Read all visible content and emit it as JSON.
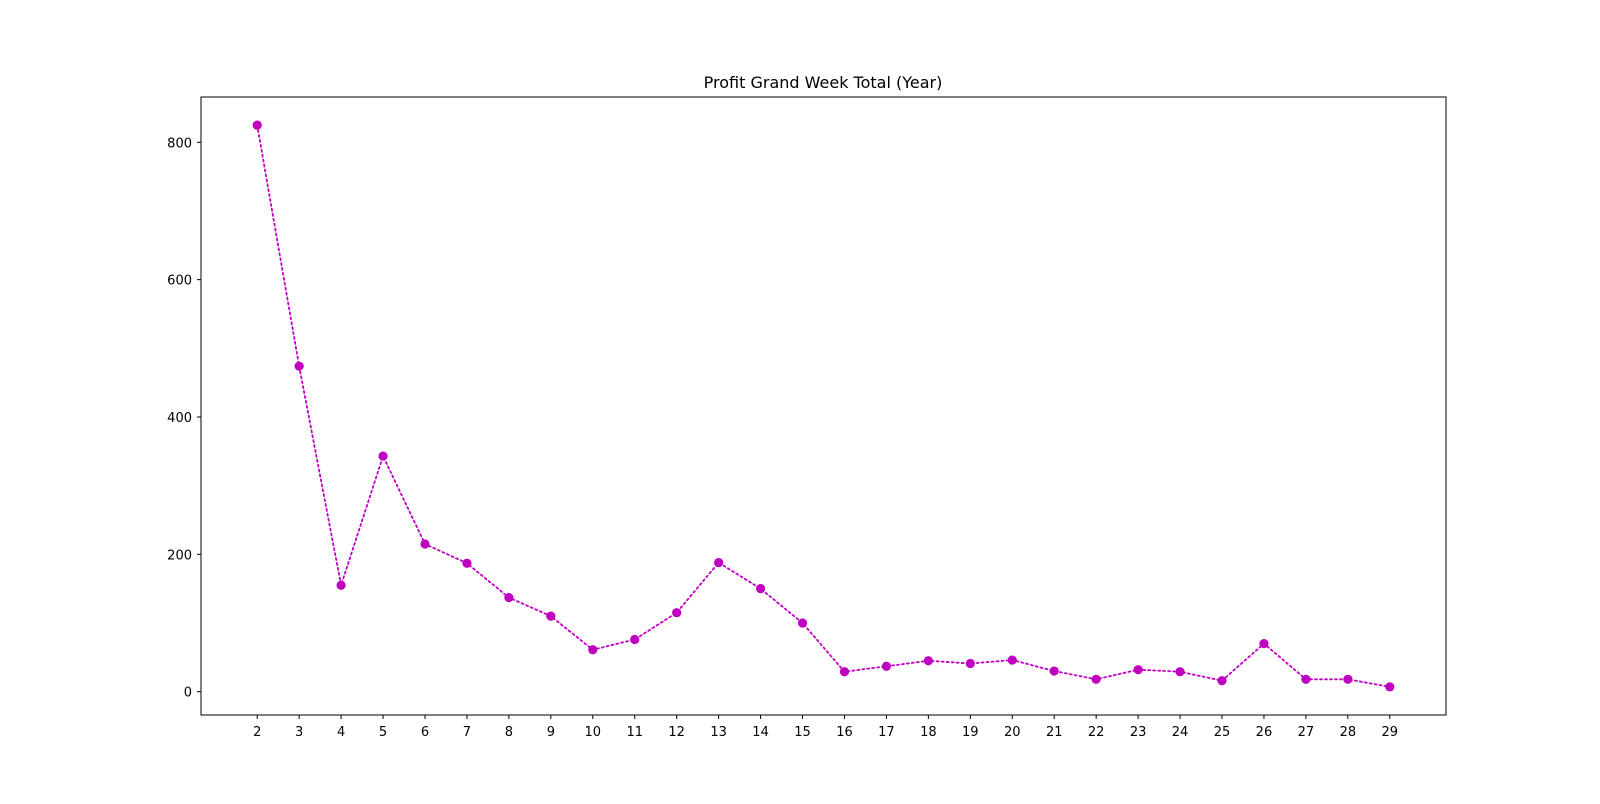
{
  "colors": {
    "series": "#c000c0",
    "axes": "#000000",
    "background": "#ffffff"
  },
  "chart_data": {
    "type": "line",
    "title": "Profit Grand Week Total (Year)",
    "xlabel": "",
    "ylabel": "",
    "x": [
      2,
      3,
      4,
      5,
      6,
      7,
      8,
      9,
      10,
      11,
      12,
      13,
      14,
      15,
      16,
      17,
      18,
      19,
      20,
      21,
      22,
      23,
      24,
      25,
      26,
      27,
      28,
      29
    ],
    "series": [
      {
        "values": [
          825,
          474,
          155,
          343,
          215,
          187,
          137,
          110,
          61,
          76,
          115,
          188,
          150,
          100,
          29,
          37,
          45,
          41,
          46,
          30,
          18,
          32,
          29,
          16,
          70,
          18,
          18,
          7
        ],
        "line_style": "dotted",
        "marker": "circle"
      }
    ],
    "x_ticks": [
      "2",
      "3",
      "4",
      "5",
      "6",
      "7",
      "8",
      "9",
      "10",
      "11",
      "12",
      "13",
      "14",
      "15",
      "16",
      "17",
      "18",
      "19",
      "20",
      "21",
      "22",
      "23",
      "24",
      "25",
      "26",
      "27",
      "28",
      "29"
    ],
    "y_ticks": [
      "0",
      "200",
      "400",
      "600",
      "800"
    ],
    "xlim": [
      0.66,
      30.34
    ],
    "ylim": [
      -34,
      866
    ],
    "grid": false,
    "legend": "none"
  }
}
